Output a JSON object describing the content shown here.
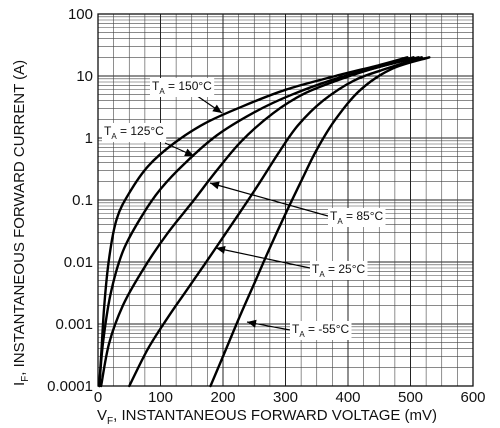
{
  "chart_data": {
    "type": "line",
    "xlabel": {
      "main": "V",
      "sub": "F",
      "rest": ", INSTANTANEOUS FORWARD VOLTAGE (mV)"
    },
    "ylabel": {
      "main": "I",
      "sub": "F",
      "rest": ", INSTANTANEOUS FORWARD CURRENT (A)"
    },
    "xlim": [
      0,
      600
    ],
    "ylim": [
      0.0001,
      100
    ],
    "y_scale": "log",
    "grid": true,
    "x_ticks": [
      0,
      100,
      200,
      300,
      400,
      500,
      600
    ],
    "y_ticks": [
      {
        "value": 0.0001,
        "label": "0.0001"
      },
      {
        "value": 0.001,
        "label": "0.001"
      },
      {
        "value": 0.01,
        "label": "0.01"
      },
      {
        "value": 0.1,
        "label": "0.1"
      },
      {
        "value": 1,
        "label": "1"
      },
      {
        "value": 10,
        "label": "10"
      },
      {
        "value": 100,
        "label": "100"
      }
    ],
    "series": [
      {
        "name": "T_A = 150°C",
        "label": {
          "main": "T",
          "sub": "A",
          "rest": " = 150°C"
        },
        "points": [
          [
            2,
            0.0001
          ],
          [
            5,
            0.0003
          ],
          [
            10,
            0.002
          ],
          [
            18,
            0.012
          ],
          [
            30,
            0.05
          ],
          [
            50,
            0.13
          ],
          [
            80,
            0.35
          ],
          [
            120,
            0.8
          ],
          [
            170,
            1.7
          ],
          [
            230,
            3.2
          ],
          [
            300,
            6
          ],
          [
            380,
            10
          ],
          [
            450,
            15
          ],
          [
            495,
            20
          ]
        ]
      },
      {
        "name": "T_A = 125°C",
        "label": {
          "main": "T",
          "sub": "A",
          "rest": " = 125°C"
        },
        "points": [
          [
            2,
            0.0001
          ],
          [
            8,
            0.0005
          ],
          [
            20,
            0.003
          ],
          [
            40,
            0.015
          ],
          [
            70,
            0.055
          ],
          [
            100,
            0.15
          ],
          [
            140,
            0.4
          ],
          [
            190,
            1.1
          ],
          [
            250,
            2.6
          ],
          [
            310,
            5
          ],
          [
            380,
            9
          ],
          [
            450,
            14
          ],
          [
            505,
            20
          ]
        ]
      },
      {
        "name": "T_A = 85°C",
        "label": {
          "main": "T",
          "sub": "A",
          "rest": " = 85°C"
        },
        "points": [
          [
            5,
            0.0001
          ],
          [
            18,
            0.0005
          ],
          [
            40,
            0.002
          ],
          [
            70,
            0.007
          ],
          [
            110,
            0.028
          ],
          [
            150,
            0.09
          ],
          [
            190,
            0.3
          ],
          [
            230,
            0.9
          ],
          [
            280,
            2.5
          ],
          [
            330,
            5.2
          ],
          [
            390,
            9
          ],
          [
            450,
            14
          ],
          [
            513,
            20
          ]
        ]
      },
      {
        "name": "T_A = 25°C",
        "label": {
          "main": "T",
          "sub": "A",
          "rest": " = 25°C"
        },
        "points": [
          [
            50,
            0.0001
          ],
          [
            80,
            0.0004
          ],
          [
            110,
            0.0012
          ],
          [
            140,
            0.0033
          ],
          [
            170,
            0.009
          ],
          [
            200,
            0.025
          ],
          [
            230,
            0.07
          ],
          [
            260,
            0.2
          ],
          [
            290,
            0.6
          ],
          [
            320,
            1.6
          ],
          [
            360,
            4
          ],
          [
            410,
            8.5
          ],
          [
            460,
            13
          ],
          [
            518,
            20
          ]
        ]
      },
      {
        "name": "T_A = -55°C",
        "label": {
          "main": "T",
          "sub": "A",
          "rest": " = -55°C"
        },
        "points": [
          [
            180,
            0.0001
          ],
          [
            200,
            0.0003
          ],
          [
            225,
            0.0012
          ],
          [
            250,
            0.0045
          ],
          [
            275,
            0.017
          ],
          [
            300,
            0.06
          ],
          [
            325,
            0.2
          ],
          [
            350,
            0.65
          ],
          [
            380,
            2
          ],
          [
            420,
            6
          ],
          [
            470,
            13
          ],
          [
            530,
            20
          ]
        ]
      }
    ]
  }
}
